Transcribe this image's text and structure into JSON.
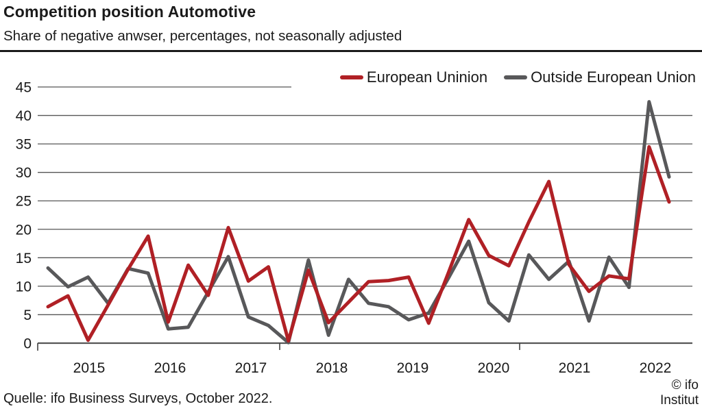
{
  "header": {
    "title": "Competition position Automotive",
    "subtitle": "Share of negative anwser, percentages, not seasonally adjusted"
  },
  "chart_data": {
    "type": "line",
    "title": "Competition position Automotive",
    "subtitle": "Share of negative anwser, percentages, not seasonally adjusted",
    "x_unit": "quarter",
    "categories": [
      "2015Q1",
      "2015Q2",
      "2015Q3",
      "2015Q4",
      "2016Q1",
      "2016Q2",
      "2016Q3",
      "2016Q4",
      "2017Q1",
      "2017Q2",
      "2017Q3",
      "2017Q4",
      "2018Q1",
      "2018Q2",
      "2018Q3",
      "2018Q4",
      "2019Q1",
      "2019Q2",
      "2019Q3",
      "2019Q4",
      "2020Q1",
      "2020Q2",
      "2020Q3",
      "2020Q4",
      "2021Q1",
      "2021Q2",
      "2021Q3",
      "2021Q4",
      "2022Q1",
      "2022Q2",
      "2022Q3",
      "2022Q4"
    ],
    "series": [
      {
        "name": "European Uninion",
        "color": "#b02025",
        "values": [
          6.4,
          8.3,
          0.5,
          6.7,
          13.0,
          18.8,
          3.7,
          13.7,
          8.4,
          20.3,
          10.9,
          13.4,
          0.4,
          12.8,
          3.6,
          7.2,
          10.8,
          11.0,
          11.6,
          3.5,
          12.5,
          21.7,
          15.4,
          13.6,
          21.3,
          28.4,
          13.8,
          9.1,
          11.8,
          11.3,
          34.5,
          24.8
        ]
      },
      {
        "name": "Outside European Union",
        "color": "#58585a",
        "values": [
          13.2,
          9.9,
          11.6,
          7.0,
          13.1,
          12.3,
          2.5,
          2.8,
          9.0,
          15.2,
          4.6,
          3.1,
          0.1,
          14.6,
          1.4,
          11.2,
          7.0,
          6.4,
          4.1,
          5.3,
          11.5,
          17.9,
          7.1,
          3.9,
          15.5,
          11.2,
          14.4,
          3.9,
          15.1,
          9.8,
          42.4,
          29.2
        ]
      }
    ],
    "ylim": [
      0,
      45
    ],
    "y_ticks": [
      0,
      5,
      10,
      15,
      20,
      25,
      30,
      35,
      40,
      45
    ],
    "x_year_labels": [
      "2015",
      "2016",
      "2017",
      "2018",
      "2019",
      "2020",
      "2021",
      "2022"
    ],
    "grid": "horizontal",
    "legend_position": "top-right"
  },
  "footer": {
    "source": "Quelle: ifo Business Surveys, October 2022.",
    "copyright_line1": "© ifo",
    "copyright_line2": "Institut"
  },
  "colors": {
    "text": "#1a1a1a",
    "grid": "#555555",
    "axis": "#404040",
    "rule": "#1a1a1a"
  }
}
